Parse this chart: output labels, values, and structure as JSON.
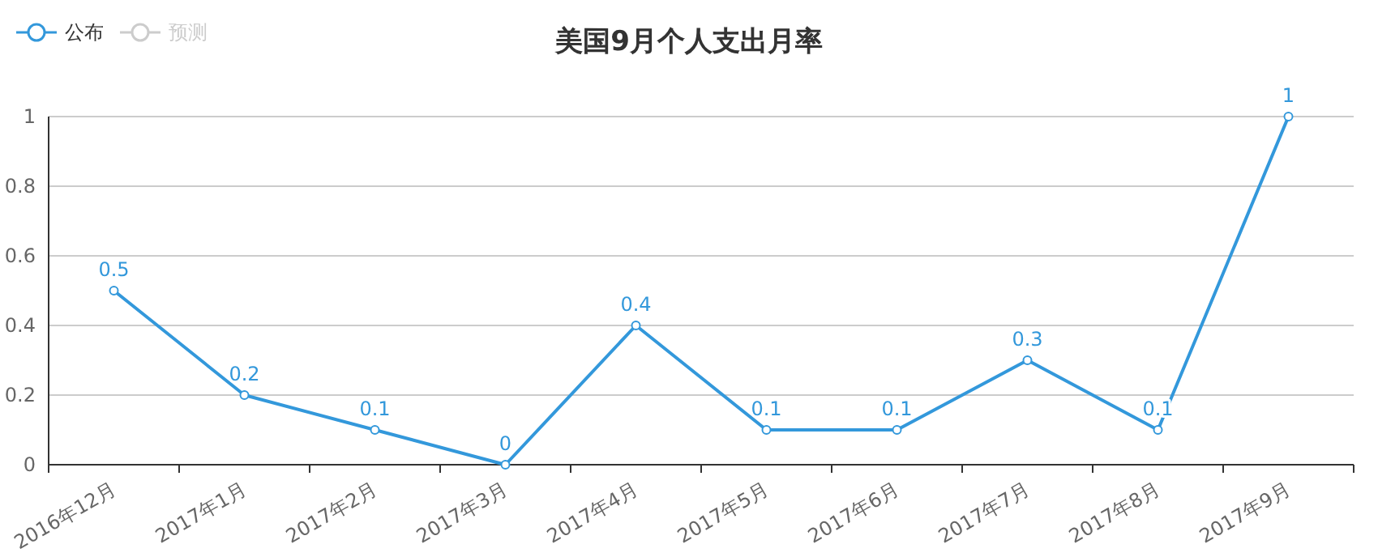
{
  "chart_data": {
    "type": "line",
    "title": "美国9月个人支出月率",
    "categories": [
      "2016年12月",
      "2017年1月",
      "2017年2月",
      "2017年3月",
      "2017年4月",
      "2017年5月",
      "2017年6月",
      "2017年7月",
      "2017年8月",
      "2017年9月"
    ],
    "series": [
      {
        "name": "公布",
        "color": "#3398db",
        "values": [
          0.5,
          0.2,
          0.1,
          0,
          0.4,
          0.1,
          0.1,
          0.3,
          0.1,
          1
        ]
      },
      {
        "name": "预测",
        "color": "#cccccc",
        "values": [
          null,
          null,
          null,
          null,
          null,
          null,
          null,
          null,
          null,
          null
        ]
      }
    ],
    "ylim": [
      0,
      1
    ],
    "yticks": [
      0,
      0.2,
      0.4,
      0.6,
      0.8,
      1
    ],
    "grid": "y",
    "legend": "top left",
    "marker": "circle",
    "data_labels": true
  }
}
